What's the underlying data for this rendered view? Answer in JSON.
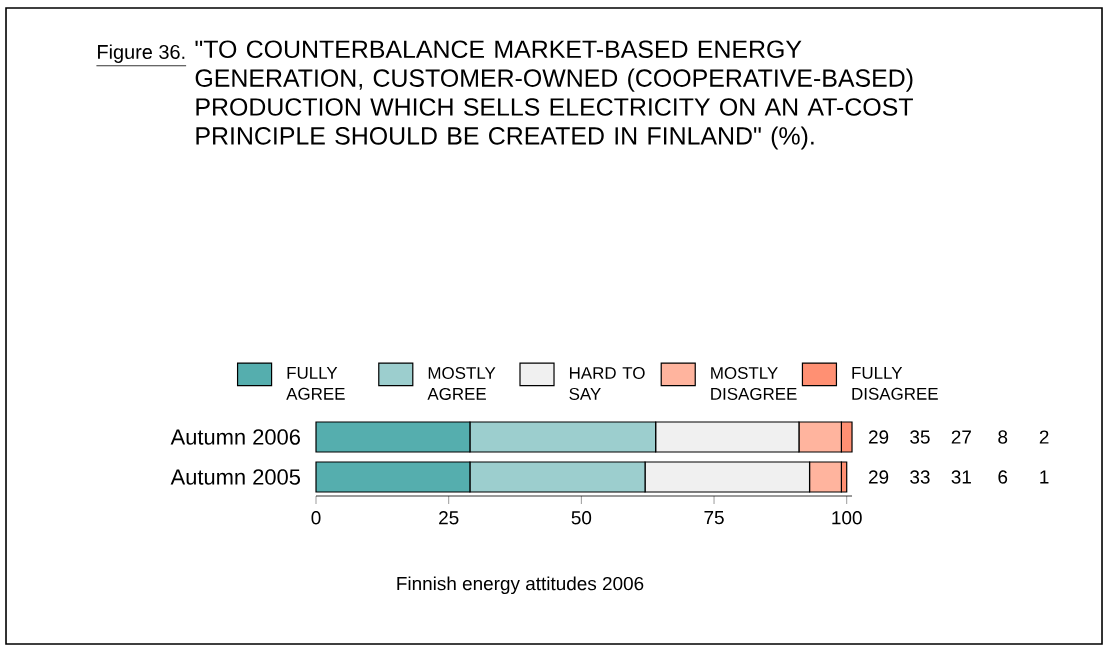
{
  "chart_data": {
    "type": "bar",
    "orientation": "horizontal",
    "stacked": true,
    "title": "\"TO COUNTERBALANCE MARKET-BASED ENERGY GENERATION, CUSTOMER-OWNED (COOPERATIVE-BASED) PRODUCTION WHICH SELLS ELECTRICITY ON AN AT-COST PRINCIPLE SHOULD BE CREATED IN FINLAND\" (%).",
    "annotations": [
      "Figure 36.",
      "Finnish energy attitudes 2006"
    ],
    "categories": [
      "Autumn 2006",
      "Autumn 2005"
    ],
    "series": [
      {
        "name": "FULLY AGREE",
        "color": "#55aeae",
        "values": [
          29,
          29
        ]
      },
      {
        "name": "MOSTLY AGREE",
        "color": "#9ccece",
        "values": [
          35,
          33
        ]
      },
      {
        "name": "HARD TO SAY",
        "color": "#f0f0f0",
        "values": [
          27,
          31
        ]
      },
      {
        "name": "MOSTLY DISAGREE",
        "color": "#ffb49e",
        "values": [
          8,
          6
        ]
      },
      {
        "name": "FULLY DISAGREE",
        "color": "#ff9073",
        "values": [
          2,
          1
        ]
      }
    ],
    "xlim": [
      0,
      101
    ],
    "xticks": [
      0,
      25,
      50,
      75,
      100
    ],
    "data_labels": true,
    "legend": "top",
    "grid": false
  }
}
